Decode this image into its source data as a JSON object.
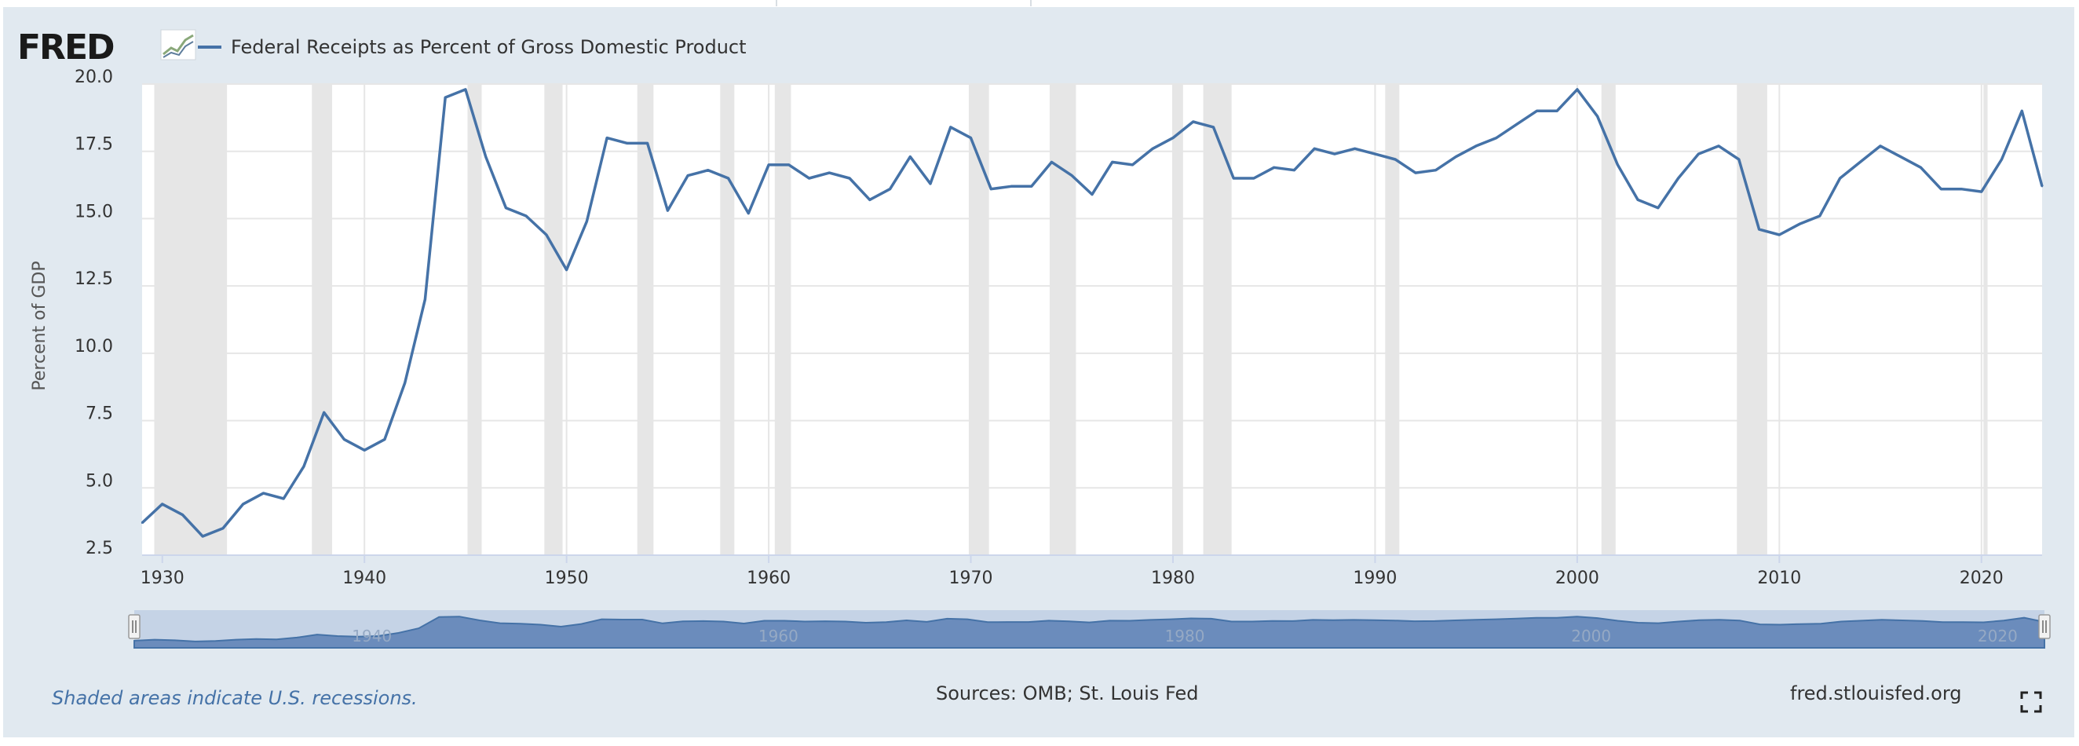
{
  "header": {
    "logo_text": "FRED",
    "logo_icon": "trend-line-icon",
    "legend_label": "Federal Receipts as Percent of Gross Domestic Product"
  },
  "colors": {
    "series": "#4572a7",
    "panel": "#e1e9f0",
    "recession": "#e6e6e6",
    "grid": "#e6e6e6",
    "navigator_bg": "#c5d3e6",
    "navigator_fill": "#5b7fb4"
  },
  "chart_data": {
    "type": "line",
    "title": "Federal Receipts as Percent of Gross Domestic Product",
    "xlabel": "",
    "ylabel": "Percent of GDP",
    "xlim": [
      1929,
      2023
    ],
    "ylim": [
      2.5,
      20.0
    ],
    "yticks": [
      2.5,
      5.0,
      7.5,
      10.0,
      12.5,
      15.0,
      17.5,
      20.0
    ],
    "ytick_labels": [
      "2.5",
      "5.0",
      "7.5",
      "10.0",
      "12.5",
      "15.0",
      "17.5",
      "20.0"
    ],
    "xticks": [
      1930,
      1940,
      1950,
      1960,
      1970,
      1980,
      1990,
      2000,
      2010,
      2020
    ],
    "xtick_labels": [
      "1930",
      "1940",
      "1950",
      "1960",
      "1970",
      "1980",
      "1990",
      "2000",
      "2010",
      "2020"
    ],
    "grid": true,
    "recessions": [
      [
        1929.6,
        1933.2
      ],
      [
        1937.4,
        1938.4
      ],
      [
        1945.1,
        1945.8
      ],
      [
        1948.9,
        1949.8
      ],
      [
        1953.5,
        1954.3
      ],
      [
        1957.6,
        1958.3
      ],
      [
        1960.3,
        1961.1
      ],
      [
        1969.9,
        1970.9
      ],
      [
        1973.9,
        1975.2
      ],
      [
        1980.0,
        1980.5
      ],
      [
        1981.5,
        1982.9
      ],
      [
        1990.5,
        1991.2
      ],
      [
        2001.2,
        2001.9
      ],
      [
        2007.9,
        2009.4
      ],
      [
        2020.1,
        2020.3
      ]
    ],
    "series": [
      {
        "name": "Federal Receipts as Percent of Gross Domestic Product",
        "x": [
          1929,
          1930,
          1931,
          1932,
          1933,
          1934,
          1935,
          1936,
          1937,
          1938,
          1939,
          1940,
          1941,
          1942,
          1943,
          1944,
          1945,
          1946,
          1947,
          1948,
          1949,
          1950,
          1951,
          1952,
          1953,
          1954,
          1955,
          1956,
          1957,
          1958,
          1959,
          1960,
          1961,
          1962,
          1963,
          1964,
          1965,
          1966,
          1967,
          1968,
          1969,
          1970,
          1971,
          1972,
          1973,
          1974,
          1975,
          1976,
          1977,
          1978,
          1979,
          1980,
          1981,
          1982,
          1983,
          1984,
          1985,
          1986,
          1987,
          1988,
          1989,
          1990,
          1991,
          1992,
          1993,
          1994,
          1995,
          1996,
          1997,
          1998,
          1999,
          2000,
          2001,
          2002,
          2003,
          2004,
          2005,
          2006,
          2007,
          2008,
          2009,
          2010,
          2011,
          2012,
          2013,
          2014,
          2015,
          2016,
          2017,
          2018,
          2019,
          2020,
          2021,
          2022,
          2023
        ],
        "values": [
          3.7,
          4.4,
          4.0,
          3.2,
          3.5,
          4.4,
          4.8,
          4.6,
          5.8,
          7.8,
          6.8,
          6.4,
          6.8,
          8.9,
          12.0,
          19.5,
          19.8,
          17.3,
          15.4,
          15.1,
          14.4,
          13.1,
          14.9,
          18.0,
          17.8,
          17.8,
          15.3,
          16.6,
          16.8,
          16.5,
          15.2,
          17.0,
          17.0,
          16.5,
          16.7,
          16.5,
          15.7,
          16.1,
          17.3,
          16.3,
          18.4,
          18.0,
          16.1,
          16.2,
          16.2,
          17.1,
          16.6,
          15.9,
          17.1,
          17.0,
          17.6,
          18.0,
          18.6,
          18.4,
          16.5,
          16.5,
          16.9,
          16.8,
          17.6,
          17.4,
          17.6,
          17.4,
          17.2,
          16.7,
          16.8,
          17.3,
          17.7,
          18.0,
          18.5,
          19.0,
          19.0,
          19.8,
          18.8,
          17.0,
          15.7,
          15.4,
          16.5,
          17.4,
          17.7,
          17.2,
          14.6,
          14.4,
          14.8,
          15.1,
          16.5,
          17.1,
          17.7,
          17.3,
          16.9,
          16.1,
          16.1,
          16.0,
          17.2,
          19.0,
          16.2
        ]
      }
    ],
    "navigator": {
      "tick_labels": [
        "1940",
        "1960",
        "1980",
        "2000",
        "2020"
      ],
      "tick_years": [
        1940,
        1960,
        1980,
        2000,
        2020
      ]
    }
  },
  "footer": {
    "note": "Shaded areas indicate U.S. recessions.",
    "sources": "Sources: OMB; St. Louis Fed",
    "site": "fred.stlouisfed.org",
    "fullscreen_icon": "fullscreen-icon"
  }
}
